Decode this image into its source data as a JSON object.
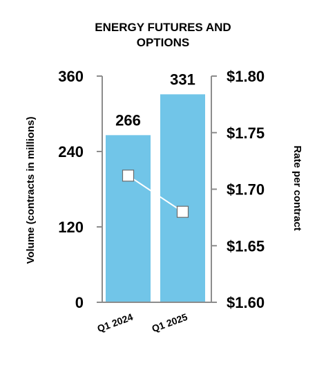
{
  "chart_data": {
    "type": "bar",
    "title": [
      "ENERGY FUTURES AND",
      "OPTIONS"
    ],
    "categories": [
      "Q1 2024",
      "Q1 2025"
    ],
    "series": [
      {
        "type": "bar",
        "axis": "left",
        "values": [
          266,
          331
        ],
        "color": "#71c5e8"
      },
      {
        "type": "line",
        "axis": "right",
        "values": [
          1.712,
          1.68
        ],
        "color": "#ffffff"
      }
    ],
    "data_labels": [
      "266",
      "331"
    ],
    "ylabel": "Volume (contracts in millions)",
    "y2label": "Rate per contract",
    "ylim": [
      0,
      360
    ],
    "y2lim": [
      1.6,
      1.8
    ],
    "yticks": [
      "0",
      "120",
      "240",
      "360"
    ],
    "y2ticks": [
      "$1.60",
      "$1.65",
      "$1.70",
      "$1.75",
      "$1.80"
    ],
    "grid": false,
    "legend": "none"
  }
}
